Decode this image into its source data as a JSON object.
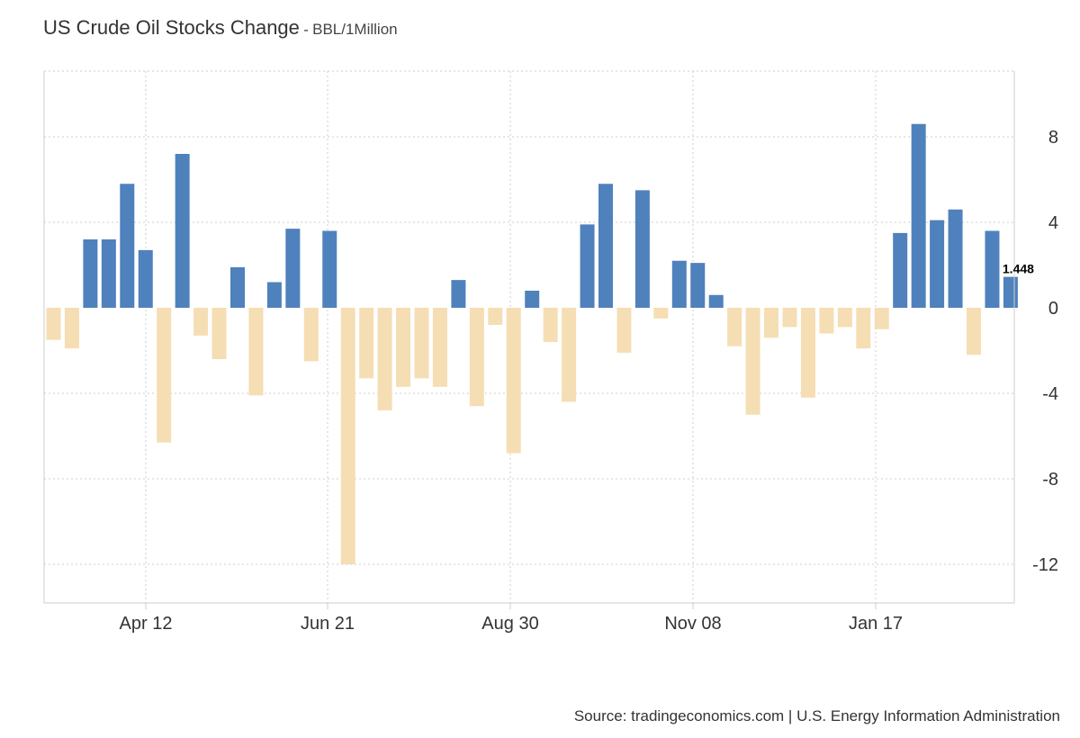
{
  "title": "US Crude Oil Stocks Change",
  "title_separator": " - ",
  "unit": "BBL/1Million",
  "source": "Source: tradingeconomics.com | U.S. Energy Information Administration",
  "colors": {
    "positive": "#4f81bd",
    "negative": "#f5deb3",
    "grid": "#cccccc",
    "axis": "#cccccc"
  },
  "chart_data": {
    "type": "bar",
    "x_tick_labels": [
      "Apr 12",
      "Jun 21",
      "Aug 30",
      "Nov 08",
      "Jan 17"
    ],
    "y_ticks": [
      -12,
      -8,
      -4,
      0,
      4,
      8
    ],
    "ylim": [
      -14,
      11
    ],
    "grid": true,
    "last_value_label": "1.448",
    "values": [
      -1.5,
      -1.9,
      3.2,
      3.2,
      5.8,
      2.7,
      -6.3,
      7.2,
      -1.3,
      -2.4,
      1.9,
      -4.1,
      1.2,
      3.7,
      -2.5,
      3.6,
      -12.0,
      -3.3,
      -4.8,
      -3.7,
      -3.3,
      -3.7,
      1.3,
      -4.6,
      -0.8,
      -6.8,
      0.8,
      -1.6,
      -4.4,
      3.9,
      5.8,
      -2.1,
      5.5,
      -0.5,
      2.2,
      2.1,
      0.6,
      -1.8,
      -5.0,
      -1.4,
      -0.9,
      -4.2,
      -1.2,
      -0.9,
      -1.9,
      -1.0,
      3.5,
      8.6,
      4.1,
      4.6,
      -2.2,
      3.6,
      1.448
    ]
  }
}
